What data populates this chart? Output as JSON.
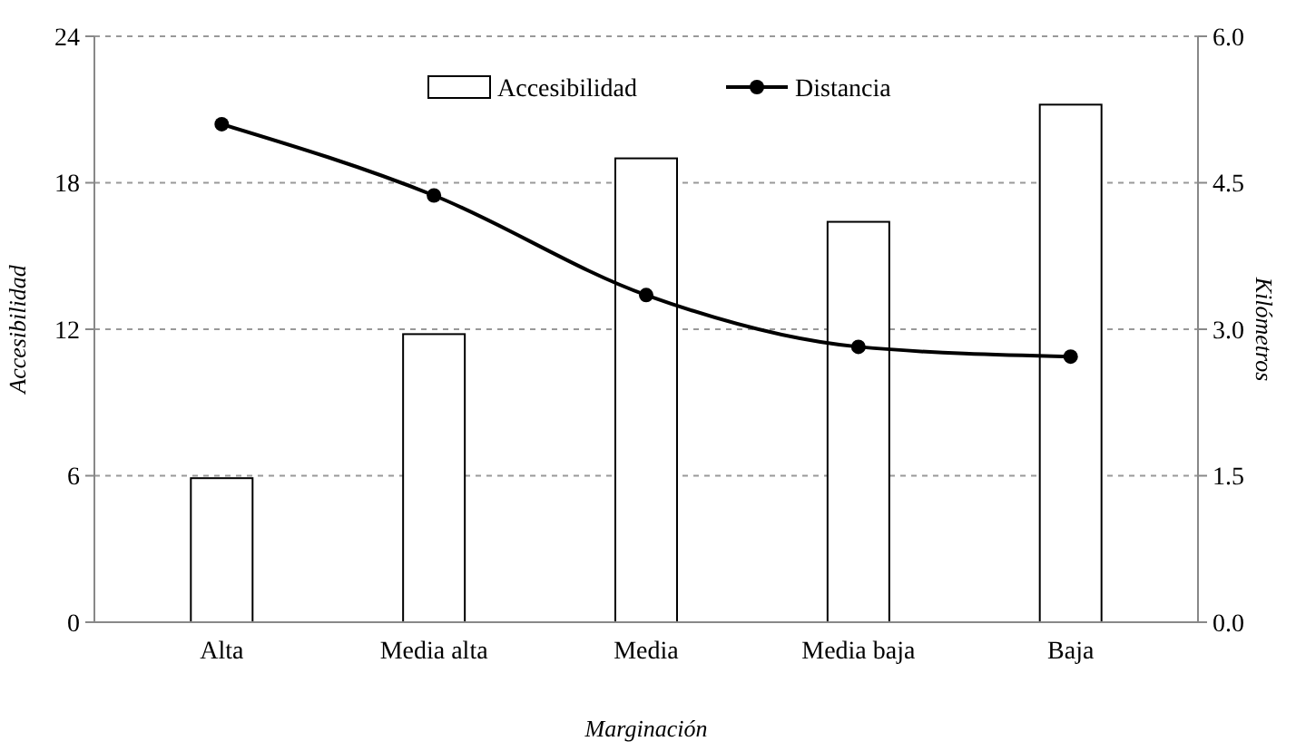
{
  "chart_data": {
    "type": "bar",
    "xlabel": "Marginación",
    "ylabel": "Accesibilidad",
    "y2label": "Kilómetros",
    "categories": [
      "Alta",
      "Media alta",
      "Media",
      "Media baja",
      "Baja"
    ],
    "series": [
      {
        "name": "Accesibilidad",
        "color": "#ffffff",
        "values": [
          5.9,
          11.8,
          19.0,
          16.4,
          21.2
        ]
      },
      {
        "name": "Distancia",
        "type": "line",
        "axis": "y2",
        "color": "#000000",
        "marker": "circle",
        "values": [
          5.1,
          4.37,
          3.35,
          2.82,
          2.72
        ]
      }
    ],
    "ylim": [
      0,
      24
    ],
    "yticks": [
      0,
      6,
      12,
      18,
      24
    ],
    "y2lim": [
      0,
      6
    ],
    "y2ticks": [
      {
        "value": 0,
        "label": "0.0"
      },
      {
        "value": 1.5,
        "label": "1.5"
      },
      {
        "value": 3,
        "label": "3.0"
      },
      {
        "value": 4.5,
        "label": "4.5"
      },
      {
        "value": 6,
        "label": "6.0"
      }
    ],
    "grid": "y",
    "legend": "top"
  }
}
